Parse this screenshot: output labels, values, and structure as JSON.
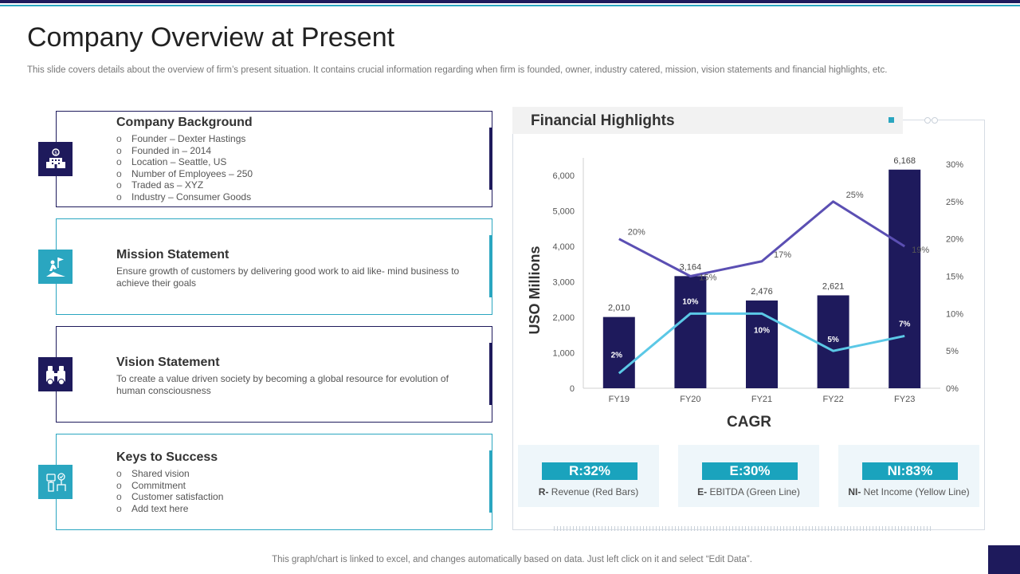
{
  "title": "Company Overview at Present",
  "subtitle": "This slide covers details about the overview of firm’s present situation. It contains crucial information regarding when firm is founded, owner, industry catered, mission, vision statements and financial highlights, etc.",
  "cards": {
    "background": {
      "title": "Company Background",
      "icon": "building-icon",
      "bullets": [
        "Founder – Dexter Hastings",
        "Founded in – 2014",
        "Location – Seattle, US",
        "Number of Employees – 250",
        "Traded as – XYZ",
        "Industry – Consumer Goods"
      ]
    },
    "mission": {
      "title": "Mission Statement",
      "icon": "climber-flag-icon",
      "text": "Ensure growth of customers by delivering good work to aid like- mind business to achieve their goals"
    },
    "vision": {
      "title": "Vision Statement",
      "icon": "binoculars-icon",
      "text": "To create a value driven society by becoming a global resource for evolution of human consciousness"
    },
    "keys": {
      "title": "Keys to Success",
      "icon": "success-icon",
      "bullets": [
        "Shared vision",
        "Commitment",
        "Customer satisfaction",
        "Add text here"
      ]
    }
  },
  "financial": {
    "title": "Financial Highlights",
    "kpis": [
      {
        "badge": "R:32%",
        "desc_bold": "R-",
        "desc": " Revenue (Red Bars)"
      },
      {
        "badge": "E:30%",
        "desc_bold": "E-",
        "desc": " EBITDA (Green Line)"
      },
      {
        "badge": "NI:83%",
        "desc_bold": "NI-",
        "desc": " Net Income (Yellow Line)"
      }
    ]
  },
  "chart_data": {
    "type": "bar",
    "categories": [
      "FY19",
      "FY20",
      "FY21",
      "FY22",
      "FY23"
    ],
    "series": [
      {
        "name": "Revenue",
        "kind": "bar",
        "axis": "left",
        "values": [
          2010,
          3164,
          2476,
          2621,
          6168
        ],
        "labels": [
          "2,010",
          "3,164",
          "2,476",
          "2,621",
          "6,168"
        ],
        "color": "#1e1a5c"
      },
      {
        "name": "Purple line",
        "kind": "line",
        "axis": "right",
        "values": [
          20,
          15,
          17,
          25,
          19
        ],
        "labels": [
          "20%",
          "15%",
          "17%",
          "25%",
          "19%"
        ],
        "color": "#5b4fb3"
      },
      {
        "name": "Cyan line",
        "kind": "line",
        "axis": "right",
        "values": [
          2,
          10,
          10,
          5,
          7
        ],
        "labels": [
          "2%",
          "10%",
          "10%",
          "5%",
          "7%"
        ],
        "color": "#5bc8e6"
      }
    ],
    "ylabel": "USO Millions",
    "xlabel": "CAGR",
    "ylim": [
      0,
      6500
    ],
    "yticks": [
      0,
      1000,
      2000,
      3000,
      4000,
      5000,
      6000
    ],
    "ytick_labels": [
      "0",
      "1,000",
      "2,000",
      "3,000",
      "4,000",
      "5,000",
      "6,000"
    ],
    "y2lim": [
      0,
      30
    ],
    "y2ticks": [
      0,
      5,
      10,
      15,
      20,
      25,
      30
    ],
    "y2tick_labels": [
      "0%",
      "5%",
      "10%",
      "15%",
      "20%",
      "25%",
      "30%"
    ]
  },
  "footer": "This graph/chart is linked to excel, and changes automatically based on data. Just left click on it and select “Edit Data”."
}
